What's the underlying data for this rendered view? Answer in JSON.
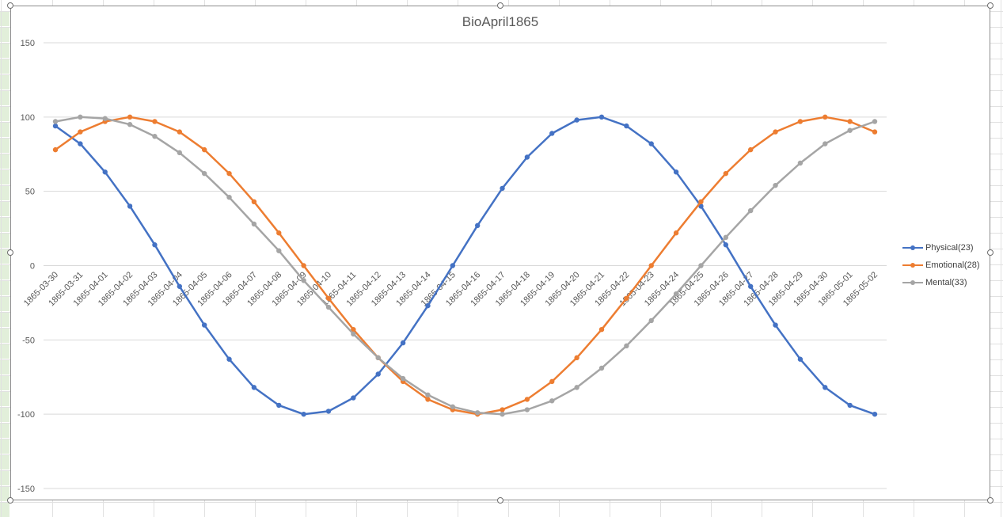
{
  "chart_data": {
    "type": "line",
    "title": "BioApril1865",
    "xlabel": "",
    "ylabel": "",
    "ylim": [
      -150,
      150
    ],
    "yticks": [
      150,
      100,
      50,
      0,
      -50,
      -100,
      -150
    ],
    "grid": true,
    "legend_position": "right",
    "categories": [
      "1865-03-30",
      "1865-03-31",
      "1865-04-01",
      "1865-04-02",
      "1865-04-03",
      "1865-04-04",
      "1865-04-05",
      "1865-04-06",
      "1865-04-07",
      "1865-04-08",
      "1865-04-09",
      "1865-04-10",
      "1865-04-11",
      "1865-04-12",
      "1865-04-13",
      "1865-04-14",
      "1865-04-15",
      "1865-04-16",
      "1865-04-17",
      "1865-04-18",
      "1865-04-19",
      "1865-04-20",
      "1865-04-21",
      "1865-04-22",
      "1865-04-23",
      "1865-04-24",
      "1865-04-25",
      "1865-04-26",
      "1865-04-27",
      "1865-04-28",
      "1865-04-29",
      "1865-04-30",
      "1865-05-01",
      "1865-05-02"
    ],
    "series": [
      {
        "name": "Physical(23)",
        "color": "#4472c4",
        "values": [
          94,
          82,
          63,
          40,
          14,
          -14,
          -40,
          -63,
          -82,
          -94,
          -100,
          -98,
          -89,
          -73,
          -52,
          -27,
          0,
          27,
          52,
          73,
          89,
          98,
          100,
          94,
          82,
          63,
          40,
          14,
          -14,
          -40,
          -63,
          -82,
          -94,
          -100
        ]
      },
      {
        "name": "Emotional(28)",
        "color": "#ed7d31",
        "values": [
          78,
          90,
          97,
          100,
          97,
          90,
          78,
          62,
          43,
          22,
          0,
          -22,
          -43,
          -62,
          -78,
          -90,
          -97,
          -100,
          -97,
          -90,
          -78,
          -62,
          -43,
          -22,
          0,
          22,
          43,
          62,
          78,
          90,
          97,
          100,
          97,
          90
        ]
      },
      {
        "name": "Mental(33)",
        "color": "#a5a5a5",
        "values": [
          97,
          100,
          99,
          95,
          87,
          76,
          62,
          46,
          28,
          10,
          -10,
          -28,
          -46,
          -62,
          -76,
          -87,
          -95,
          -99,
          -100,
          -97,
          -91,
          -82,
          -69,
          -54,
          -37,
          -19,
          0,
          19,
          37,
          54,
          69,
          82,
          91,
          97
        ]
      }
    ]
  }
}
